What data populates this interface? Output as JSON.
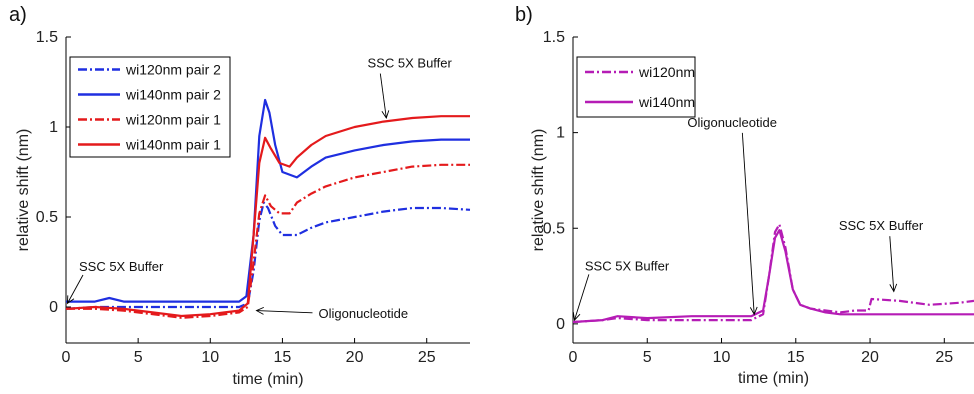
{
  "chart_data": [
    {
      "panel_label": "a)",
      "type": "line",
      "xlabel": "time (min)",
      "ylabel": "relative shift (nm)",
      "xlim": [
        0,
        28
      ],
      "ylim": [
        -0.2,
        1.5
      ],
      "xticks": [
        0,
        5,
        10,
        15,
        20,
        25
      ],
      "yticks": [
        0,
        0.5,
        1,
        1.5
      ],
      "xtick_labels": [
        "0",
        "5",
        "10",
        "15",
        "20",
        "25"
      ],
      "ytick_labels": [
        "0",
        "0.5",
        "1",
        "1.5"
      ],
      "legend_position": "top-left",
      "series": [
        {
          "name": "wi120nm pair 2",
          "color": "#1f2fe0",
          "dash": "dashdot",
          "points": [
            [
              0,
              -0.01
            ],
            [
              2,
              0.0
            ],
            [
              4,
              0.0
            ],
            [
              6,
              0.0
            ],
            [
              8,
              0.0
            ],
            [
              10,
              0.0
            ],
            [
              12,
              0.0
            ],
            [
              12.6,
              0.02
            ],
            [
              13,
              0.2
            ],
            [
              13.4,
              0.48
            ],
            [
              13.7,
              0.58
            ],
            [
              14.0,
              0.55
            ],
            [
              14.5,
              0.45
            ],
            [
              15.0,
              0.4
            ],
            [
              16,
              0.4
            ],
            [
              17,
              0.44
            ],
            [
              18,
              0.47
            ],
            [
              20,
              0.5
            ],
            [
              22,
              0.53
            ],
            [
              24,
              0.55
            ],
            [
              26,
              0.55
            ],
            [
              28,
              0.54
            ]
          ]
        },
        {
          "name": "wi140nm pair 2",
          "color": "#1f2fe0",
          "dash": "solid",
          "points": [
            [
              0,
              0.03
            ],
            [
              2,
              0.03
            ],
            [
              3,
              0.05
            ],
            [
              4,
              0.03
            ],
            [
              6,
              0.03
            ],
            [
              8,
              0.03
            ],
            [
              10,
              0.03
            ],
            [
              12,
              0.03
            ],
            [
              12.5,
              0.06
            ],
            [
              13,
              0.4
            ],
            [
              13.4,
              0.95
            ],
            [
              13.8,
              1.15
            ],
            [
              14.1,
              1.08
            ],
            [
              14.5,
              0.9
            ],
            [
              15,
              0.75
            ],
            [
              16,
              0.72
            ],
            [
              17,
              0.78
            ],
            [
              18,
              0.83
            ],
            [
              20,
              0.87
            ],
            [
              22,
              0.9
            ],
            [
              24,
              0.92
            ],
            [
              26,
              0.93
            ],
            [
              28,
              0.93
            ]
          ]
        },
        {
          "name": "wi120nm pair 1",
          "color": "#e41a1c",
          "dash": "dashdot",
          "points": [
            [
              0,
              -0.01
            ],
            [
              2,
              -0.01
            ],
            [
              4,
              -0.02
            ],
            [
              6,
              -0.04
            ],
            [
              8,
              -0.06
            ],
            [
              10,
              -0.05
            ],
            [
              11,
              -0.04
            ],
            [
              12,
              -0.03
            ],
            [
              12.6,
              0.0
            ],
            [
              13,
              0.25
            ],
            [
              13.4,
              0.52
            ],
            [
              13.8,
              0.62
            ],
            [
              14.2,
              0.56
            ],
            [
              14.8,
              0.52
            ],
            [
              15.5,
              0.52
            ],
            [
              16,
              0.58
            ],
            [
              17,
              0.63
            ],
            [
              18,
              0.67
            ],
            [
              20,
              0.72
            ],
            [
              22,
              0.75
            ],
            [
              24,
              0.78
            ],
            [
              26,
              0.79
            ],
            [
              28,
              0.79
            ]
          ]
        },
        {
          "name": "wi140nm pair 1",
          "color": "#e41a1c",
          "dash": "solid",
          "points": [
            [
              0,
              -0.01
            ],
            [
              2,
              0.0
            ],
            [
              4,
              -0.01
            ],
            [
              6,
              -0.03
            ],
            [
              8,
              -0.05
            ],
            [
              10,
              -0.04
            ],
            [
              11,
              -0.03
            ],
            [
              12,
              -0.02
            ],
            [
              12.6,
              0.02
            ],
            [
              13,
              0.4
            ],
            [
              13.4,
              0.8
            ],
            [
              13.8,
              0.94
            ],
            [
              14.2,
              0.88
            ],
            [
              14.8,
              0.8
            ],
            [
              15.5,
              0.78
            ],
            [
              16,
              0.83
            ],
            [
              17,
              0.9
            ],
            [
              18,
              0.95
            ],
            [
              20,
              1.0
            ],
            [
              22,
              1.03
            ],
            [
              24,
              1.05
            ],
            [
              26,
              1.06
            ],
            [
              28,
              1.06
            ]
          ]
        }
      ],
      "annotations": [
        {
          "text": "SSC 5X Buffer",
          "label_x": 0.9,
          "label_y": 0.2,
          "arrow_x": 0.1,
          "arrow_y": 0.02
        },
        {
          "text": "Oligonucleotide",
          "label_x": 17.5,
          "label_y": -0.06,
          "arrow_x": 13.2,
          "arrow_y": -0.02
        },
        {
          "text": "SSC 5X Buffer",
          "label_x": 20.9,
          "label_y": 1.33,
          "arrow_x": 22.2,
          "arrow_y": 1.05
        }
      ]
    },
    {
      "panel_label": "b)",
      "type": "line",
      "xlabel": "time (min)",
      "ylabel": "relative shift (nm)",
      "xlim": [
        0,
        27
      ],
      "ylim": [
        -0.1,
        1.5
      ],
      "xticks": [
        0,
        5,
        10,
        15,
        20,
        25
      ],
      "yticks": [
        0,
        0.5,
        1,
        1.5
      ],
      "xtick_labels": [
        "0",
        "5",
        "10",
        "15",
        "20",
        "25"
      ],
      "ytick_labels": [
        "0",
        "0.5",
        "1",
        "1.5"
      ],
      "legend_position": "top-left",
      "series": [
        {
          "name": "wi120nm",
          "color": "#b51cb5",
          "dash": "dashdot",
          "points": [
            [
              0,
              0.01
            ],
            [
              2,
              0.02
            ],
            [
              3,
              0.03
            ],
            [
              5,
              0.02
            ],
            [
              8,
              0.02
            ],
            [
              10,
              0.02
            ],
            [
              12,
              0.02
            ],
            [
              12.8,
              0.05
            ],
            [
              13.2,
              0.25
            ],
            [
              13.6,
              0.48
            ],
            [
              13.9,
              0.52
            ],
            [
              14.3,
              0.4
            ],
            [
              14.8,
              0.18
            ],
            [
              15.3,
              0.1
            ],
            [
              16,
              0.08
            ],
            [
              17,
              0.07
            ],
            [
              18,
              0.06
            ],
            [
              19,
              0.07
            ],
            [
              19.9,
              0.07
            ],
            [
              20.1,
              0.13
            ],
            [
              22,
              0.12
            ],
            [
              24,
              0.1
            ],
            [
              26,
              0.11
            ],
            [
              27,
              0.12
            ]
          ]
        },
        {
          "name": "wi140nm",
          "color": "#b51cb5",
          "dash": "solid",
          "points": [
            [
              0,
              0.01
            ],
            [
              2,
              0.02
            ],
            [
              3,
              0.04
            ],
            [
              5,
              0.03
            ],
            [
              8,
              0.04
            ],
            [
              10,
              0.04
            ],
            [
              12,
              0.04
            ],
            [
              12.8,
              0.07
            ],
            [
              13.2,
              0.25
            ],
            [
              13.6,
              0.45
            ],
            [
              13.9,
              0.49
            ],
            [
              14.3,
              0.38
            ],
            [
              14.8,
              0.18
            ],
            [
              15.3,
              0.1
            ],
            [
              16,
              0.08
            ],
            [
              17,
              0.06
            ],
            [
              18,
              0.05
            ],
            [
              20,
              0.05
            ],
            [
              22,
              0.05
            ],
            [
              24,
              0.05
            ],
            [
              26,
              0.05
            ],
            [
              27,
              0.05
            ]
          ]
        }
      ],
      "annotations": [
        {
          "text": "SSC 5X Buffer",
          "label_x": 0.8,
          "label_y": 0.28,
          "arrow_x": 0.1,
          "arrow_y": 0.02
        },
        {
          "text": "Oligonucleotide",
          "label_x": 7.7,
          "label_y": 1.03,
          "arrow_x": 12.2,
          "arrow_y": 0.05
        },
        {
          "text": "SSC 5X Buffer",
          "label_x": 17.9,
          "label_y": 0.49,
          "arrow_x": 21.6,
          "arrow_y": 0.17
        }
      ]
    }
  ]
}
